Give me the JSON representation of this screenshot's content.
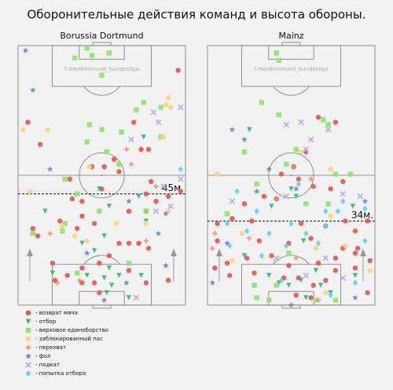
{
  "title": "Оборонительные действия команд и высота обороны.",
  "legend": [
    {
      "name": "- возврат мяча",
      "color": "#e8524a",
      "marker": "circle"
    },
    {
      "name": "- отбор",
      "color": "#2eb872",
      "marker": "triangle-down"
    },
    {
      "name": "- верховое единоборство",
      "color": "#8fe36e",
      "marker": "square"
    },
    {
      "name": "- заблокированный пас",
      "color": "#fdd27a",
      "marker": "circle"
    },
    {
      "name": "- перехват",
      "color": "#f98c6b",
      "marker": "plus"
    },
    {
      "name": "- фол",
      "color": "#6b83c8",
      "marker": "star"
    },
    {
      "name": "- подкат",
      "color": "#b9a6f0",
      "marker": "x"
    },
    {
      "name": "- попытка отбора",
      "color": "#5fd0f0",
      "marker": "diamond"
    }
  ],
  "chart_data": [
    {
      "type": "scatter",
      "title": "Borussia Dortmund",
      "watermark": "t.me/dortmund_bundesliga",
      "xlim": [
        0,
        68
      ],
      "ylim": [
        0,
        105
      ],
      "defense_line": {
        "value": 45,
        "label": "45м."
      },
      "series": [
        {
          "x": [
            65,
            4,
            9,
            47,
            50,
            53,
            39,
            35,
            41,
            30,
            21,
            54,
            34,
            52,
            22,
            26,
            56,
            45,
            52,
            31,
            17,
            6,
            8,
            26,
            24,
            41,
            45,
            49,
            53,
            37,
            33,
            26,
            14,
            45,
            31,
            33,
            20,
            15,
            26,
            52,
            61,
            66,
            61
          ],
          "y": [
            95,
            74,
            65,
            74,
            63,
            63,
            59,
            56,
            54,
            56,
            51,
            50,
            47,
            45,
            43,
            42,
            42,
            38,
            38,
            33,
            34,
            31,
            28,
            36,
            31,
            25,
            25,
            25,
            23,
            20,
            17,
            15,
            17,
            14,
            9,
            5,
            12,
            10,
            9,
            9,
            10,
            46,
            44
          ]
        },
        {
          "x": [
            33,
            37,
            26,
            31,
            14,
            41,
            35,
            28,
            38,
            36,
            45,
            50,
            37,
            51,
            52,
            49,
            11,
            35
          ],
          "y": [
            47,
            40,
            25,
            22,
            13,
            12,
            11,
            12,
            8,
            5,
            3,
            12,
            15,
            68,
            34,
            44,
            38,
            28
          ]
        },
        {
          "x": [
            23,
            30,
            28,
            37,
            34,
            51,
            48,
            29,
            34,
            42,
            58,
            36,
            41,
            19,
            24,
            33,
            52,
            19,
            18,
            45,
            24,
            58,
            28,
            6
          ],
          "y": [
            100,
            101,
            104,
            102,
            93,
            82,
            79,
            73,
            71,
            70,
            68,
            62,
            57,
            51,
            45,
            38,
            38,
            33,
            30,
            17,
            13,
            80,
            66,
            29
          ]
        },
        {
          "x": [
            60,
            61,
            62,
            2,
            12,
            59,
            5,
            23,
            28,
            40,
            52,
            61,
            29,
            18
          ],
          "y": [
            81,
            84,
            80,
            71,
            71,
            68,
            46,
            28,
            26,
            33,
            33,
            38,
            56,
            32
          ]
        },
        {
          "x": [
            44,
            56,
            52,
            13,
            16,
            25,
            46
          ],
          "y": [
            63,
            48,
            26,
            29,
            9,
            10,
            57
          ]
        },
        {
          "x": [
            3,
            6,
            13,
            45,
            57,
            60,
            44,
            28,
            35,
            60
          ],
          "y": [
            103,
            87,
            55,
            42,
            29,
            37,
            9,
            21,
            2,
            16
          ]
        },
        {
          "x": [
            66,
            55,
            57,
            46,
            66,
            62,
            48,
            59,
            56
          ],
          "y": [
            80,
            78,
            74,
            67,
            51,
            40,
            3,
            48,
            38
          ]
        },
        {
          "x": [
            66
          ],
          "y": [
            55
          ]
        }
      ]
    },
    {
      "type": "scatter",
      "title": "Mainz",
      "watermark": "t.me/dortmund_bundesliga",
      "xlim": [
        0,
        68
      ],
      "ylim": [
        0,
        105
      ],
      "defense_line": {
        "value": 34,
        "label": "34м."
      },
      "series": [
        {
          "x": [
            45,
            52,
            40,
            35,
            30,
            37,
            43,
            55,
            50,
            23,
            15,
            28,
            10,
            4,
            18,
            56,
            38,
            48,
            60,
            65,
            4,
            21,
            33,
            42,
            55,
            61,
            8,
            16,
            26,
            33,
            45,
            52,
            60,
            9,
            19,
            31,
            37,
            43,
            48,
            52,
            60,
            66,
            65,
            3,
            36,
            42
          ],
          "y": [
            76,
            74,
            62,
            56,
            53,
            51,
            48,
            50,
            47,
            44,
            41,
            43,
            35,
            33,
            34,
            34,
            33,
            32,
            30,
            34,
            26,
            26,
            25,
            27,
            23,
            23,
            17,
            19,
            20,
            16,
            17,
            19,
            21,
            12,
            13,
            11,
            11,
            8,
            10,
            14,
            15,
            18,
            5,
            15,
            4,
            3
          ]
        },
        {
          "x": [
            17,
            34,
            36,
            26,
            39,
            44,
            29,
            33,
            38,
            46,
            50,
            40,
            25,
            60,
            15,
            59
          ],
          "y": [
            71,
            47,
            44,
            40,
            26,
            14,
            9,
            8,
            10,
            8,
            5,
            3,
            12,
            12,
            20,
            40
          ]
        },
        {
          "x": [
            29,
            28,
            22,
            29,
            47,
            49,
            15,
            32,
            52,
            20,
            49,
            8,
            40,
            19,
            20,
            25,
            28,
            44,
            52,
            33,
            58,
            36
          ],
          "y": [
            99,
            102,
            82,
            77,
            75,
            73,
            62,
            57,
            53,
            49,
            41,
            37,
            41,
            8,
            3,
            2,
            8,
            2,
            2,
            21,
            53,
            63
          ]
        },
        {
          "x": [
            38,
            50,
            4,
            50,
            14,
            44,
            56,
            10,
            48,
            66
          ],
          "y": [
            62,
            55,
            53,
            36,
            29,
            23,
            24,
            18,
            5,
            14
          ]
        },
        {
          "x": [
            35,
            42,
            28,
            2,
            36,
            17,
            45,
            3
          ],
          "y": [
            56,
            51,
            43,
            23,
            19,
            27,
            2,
            29
          ]
        },
        {
          "x": [
            10,
            15,
            25,
            20,
            64,
            36,
            2,
            60,
            34,
            8
          ],
          "y": [
            71,
            67,
            55,
            46,
            42,
            47,
            9,
            3,
            0,
            25
          ]
        },
        {
          "x": [
            32,
            38,
            49,
            42,
            40,
            55,
            32,
            62,
            10,
            28,
            40,
            55,
            48
          ],
          "y": [
            73,
            74,
            71,
            67,
            63,
            45,
            44,
            44,
            42,
            19,
            12,
            11,
            19
          ]
        },
        {
          "x": [
            12,
            55,
            64,
            48,
            37,
            8,
            16,
            25,
            34,
            48,
            20,
            22,
            45,
            64,
            53,
            40,
            9,
            60,
            32,
            30,
            50
          ],
          "y": [
            46,
            42,
            39,
            38,
            49,
            33,
            30,
            29,
            33,
            32,
            38,
            20,
            25,
            26,
            38,
            29,
            24,
            9,
            24,
            10,
            4
          ]
        }
      ]
    }
  ]
}
